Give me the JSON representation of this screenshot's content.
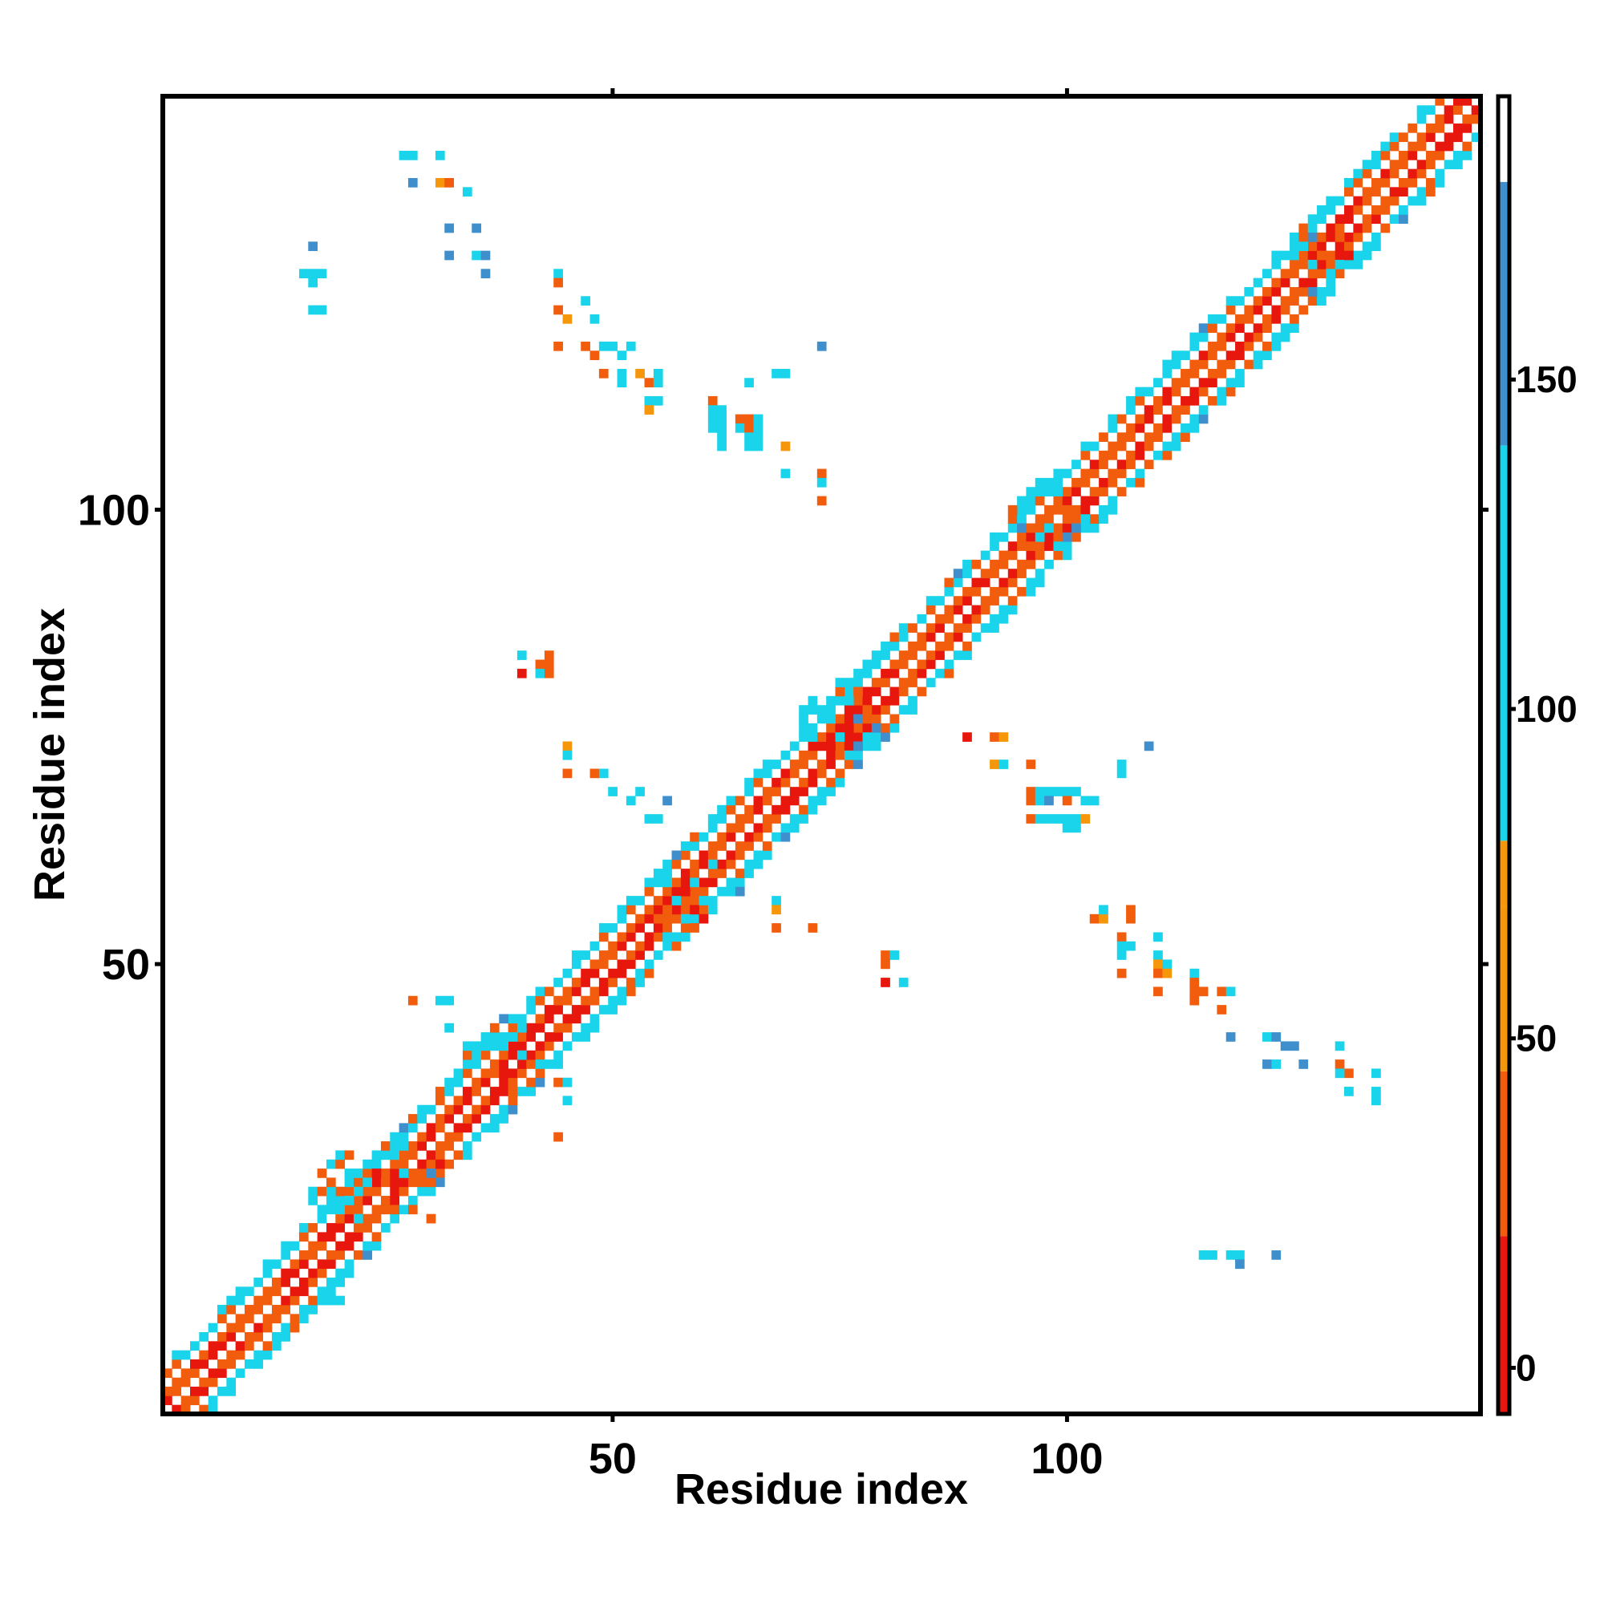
{
  "chart_data": {
    "type": "heatmap",
    "title": "",
    "xlabel": "Residue index",
    "ylabel": "Residue index",
    "x_range": [
      1,
      145
    ],
    "y_range": [
      1,
      145
    ],
    "x_ticks": [
      50,
      100
    ],
    "y_ticks": [
      50,
      100
    ],
    "colorbar": {
      "ticks": [
        0,
        50,
        100,
        150
      ],
      "range": [
        -7,
        193
      ],
      "bands": [
        {
          "from": -7,
          "to": 20,
          "color": "#e8170d"
        },
        {
          "from": 20,
          "to": 45,
          "color": "#f15d0d"
        },
        {
          "from": 45,
          "to": 70,
          "color": "#f6960a"
        },
        {
          "from": 70,
          "to": 80,
          "color": "#f6960a"
        },
        {
          "from": 80,
          "to": 140,
          "color": "#19d4ea"
        },
        {
          "from": 140,
          "to": 180,
          "color": "#3f8fcd"
        },
        {
          "from": 180,
          "to": 193,
          "color": "#ffffff"
        }
      ]
    },
    "grid": false,
    "legend": "colorbar right",
    "band_half_width": 5,
    "diagonal_clusters": [
      {
        "x": 21,
        "y": 25
      },
      {
        "x": 27,
        "y": 27
      },
      {
        "x": 38,
        "y": 40
      },
      {
        "x": 57,
        "y": 57
      },
      {
        "x": 75,
        "y": 77
      },
      {
        "x": 98,
        "y": 99
      },
      {
        "x": 128,
        "y": 128
      }
    ],
    "off_diagonal_contacts": [
      {
        "x": 27,
        "y": 139,
        "v": 95
      },
      {
        "x": 28,
        "y": 139,
        "v": 95
      },
      {
        "x": 31,
        "y": 139,
        "v": 95
      },
      {
        "x": 28,
        "y": 136,
        "v": 150
      },
      {
        "x": 31,
        "y": 136,
        "v": 60
      },
      {
        "x": 32,
        "y": 136,
        "v": 40
      },
      {
        "x": 34,
        "y": 135,
        "v": 95
      },
      {
        "x": 32,
        "y": 131,
        "v": 150
      },
      {
        "x": 35,
        "y": 131,
        "v": 150
      },
      {
        "x": 32,
        "y": 128,
        "v": 150
      },
      {
        "x": 35,
        "y": 128,
        "v": 110
      },
      {
        "x": 36,
        "y": 128,
        "v": 150
      },
      {
        "x": 36,
        "y": 126,
        "v": 150
      },
      {
        "x": 17,
        "y": 129,
        "v": 150
      },
      {
        "x": 16,
        "y": 126,
        "v": 95
      },
      {
        "x": 17,
        "y": 126,
        "v": 95
      },
      {
        "x": 18,
        "y": 126,
        "v": 95
      },
      {
        "x": 17,
        "y": 125,
        "v": 95
      },
      {
        "x": 17,
        "y": 122,
        "v": 95
      },
      {
        "x": 18,
        "y": 122,
        "v": 95
      },
      {
        "x": 44,
        "y": 126,
        "v": 95
      },
      {
        "x": 44,
        "y": 125,
        "v": 40
      },
      {
        "x": 47,
        "y": 123,
        "v": 95
      },
      {
        "x": 44,
        "y": 122,
        "v": 40
      },
      {
        "x": 45,
        "y": 121,
        "v": 60
      },
      {
        "x": 48,
        "y": 121,
        "v": 95
      },
      {
        "x": 44,
        "y": 118,
        "v": 40
      },
      {
        "x": 47,
        "y": 118,
        "v": 40
      },
      {
        "x": 49,
        "y": 118,
        "v": 110
      },
      {
        "x": 50,
        "y": 118,
        "v": 95
      },
      {
        "x": 52,
        "y": 118,
        "v": 95
      },
      {
        "x": 48,
        "y": 117,
        "v": 40
      },
      {
        "x": 51,
        "y": 117,
        "v": 95
      },
      {
        "x": 49,
        "y": 115,
        "v": 40
      },
      {
        "x": 51,
        "y": 115,
        "v": 110
      },
      {
        "x": 53,
        "y": 115,
        "v": 60
      },
      {
        "x": 55,
        "y": 115,
        "v": 95
      },
      {
        "x": 51,
        "y": 114,
        "v": 95
      },
      {
        "x": 54,
        "y": 114,
        "v": 40
      },
      {
        "x": 55,
        "y": 114,
        "v": 95
      },
      {
        "x": 54,
        "y": 112,
        "v": 95
      },
      {
        "x": 55,
        "y": 112,
        "v": 95
      },
      {
        "x": 54,
        "y": 111,
        "v": 60
      },
      {
        "x": 61,
        "y": 112,
        "v": 40
      },
      {
        "x": 61,
        "y": 111,
        "v": 95
      },
      {
        "x": 62,
        "y": 111,
        "v": 95
      },
      {
        "x": 61,
        "y": 110,
        "v": 95
      },
      {
        "x": 62,
        "y": 110,
        "v": 95
      },
      {
        "x": 64,
        "y": 110,
        "v": 40
      },
      {
        "x": 65,
        "y": 110,
        "v": 40
      },
      {
        "x": 66,
        "y": 110,
        "v": 95
      },
      {
        "x": 61,
        "y": 109,
        "v": 95
      },
      {
        "x": 62,
        "y": 109,
        "v": 95
      },
      {
        "x": 64,
        "y": 109,
        "v": 95
      },
      {
        "x": 65,
        "y": 109,
        "v": 40
      },
      {
        "x": 66,
        "y": 109,
        "v": 95
      },
      {
        "x": 62,
        "y": 108,
        "v": 95
      },
      {
        "x": 65,
        "y": 108,
        "v": 95
      },
      {
        "x": 66,
        "y": 108,
        "v": 95
      },
      {
        "x": 62,
        "y": 107,
        "v": 95
      },
      {
        "x": 65,
        "y": 107,
        "v": 95
      },
      {
        "x": 66,
        "y": 107,
        "v": 95
      },
      {
        "x": 65,
        "y": 114,
        "v": 110
      },
      {
        "x": 68,
        "y": 115,
        "v": 95
      },
      {
        "x": 69,
        "y": 115,
        "v": 95
      },
      {
        "x": 73,
        "y": 118,
        "v": 150
      },
      {
        "x": 69,
        "y": 107,
        "v": 60
      },
      {
        "x": 69,
        "y": 104,
        "v": 95
      },
      {
        "x": 73,
        "y": 104,
        "v": 40
      },
      {
        "x": 73,
        "y": 103,
        "v": 95
      },
      {
        "x": 73,
        "y": 101,
        "v": 40
      },
      {
        "x": 40,
        "y": 84,
        "v": 95
      },
      {
        "x": 43,
        "y": 84,
        "v": 40
      },
      {
        "x": 42,
        "y": 83,
        "v": 40
      },
      {
        "x": 43,
        "y": 83,
        "v": 40
      },
      {
        "x": 40,
        "y": 82,
        "v": 5
      },
      {
        "x": 42,
        "y": 82,
        "v": 95
      },
      {
        "x": 43,
        "y": 82,
        "v": 40
      },
      {
        "x": 45,
        "y": 74,
        "v": 60
      },
      {
        "x": 45,
        "y": 73,
        "v": 95
      },
      {
        "x": 45,
        "y": 71,
        "v": 40
      },
      {
        "x": 48,
        "y": 71,
        "v": 40
      },
      {
        "x": 49,
        "y": 71,
        "v": 95
      },
      {
        "x": 50,
        "y": 69,
        "v": 95
      },
      {
        "x": 52,
        "y": 68,
        "v": 95
      },
      {
        "x": 53,
        "y": 69,
        "v": 95
      },
      {
        "x": 56,
        "y": 68,
        "v": 150
      },
      {
        "x": 54,
        "y": 66,
        "v": 95
      },
      {
        "x": 55,
        "y": 66,
        "v": 95
      },
      {
        "x": 61,
        "y": 62,
        "v": 95
      },
      {
        "x": 61,
        "y": 61,
        "v": 95
      },
      {
        "x": 63,
        "y": 61,
        "v": 95
      },
      {
        "x": 64,
        "y": 60,
        "v": 95
      },
      {
        "x": 65,
        "y": 60,
        "v": 95
      },
      {
        "x": 64,
        "y": 58,
        "v": 150
      },
      {
        "x": 68,
        "y": 57,
        "v": 95
      },
      {
        "x": 68,
        "y": 56,
        "v": 60
      },
      {
        "x": 68,
        "y": 54,
        "v": 40
      },
      {
        "x": 72,
        "y": 54,
        "v": 40
      },
      {
        "x": 80,
        "y": 51,
        "v": 40
      },
      {
        "x": 81,
        "y": 51,
        "v": 95
      },
      {
        "x": 80,
        "y": 50,
        "v": 40
      },
      {
        "x": 80,
        "y": 48,
        "v": 5
      },
      {
        "x": 82,
        "y": 48,
        "v": 95
      },
      {
        "x": 89,
        "y": 75,
        "v": 5
      },
      {
        "x": 92,
        "y": 75,
        "v": 40
      },
      {
        "x": 93,
        "y": 75,
        "v": 60
      },
      {
        "x": 92,
        "y": 72,
        "v": 60
      },
      {
        "x": 93,
        "y": 72,
        "v": 95
      },
      {
        "x": 96,
        "y": 72,
        "v": 40
      },
      {
        "x": 96,
        "y": 69,
        "v": 40
      },
      {
        "x": 97,
        "y": 69,
        "v": 95
      },
      {
        "x": 98,
        "y": 69,
        "v": 95
      },
      {
        "x": 99,
        "y": 69,
        "v": 95
      },
      {
        "x": 100,
        "y": 69,
        "v": 95
      },
      {
        "x": 101,
        "y": 69,
        "v": 95
      },
      {
        "x": 96,
        "y": 68,
        "v": 40
      },
      {
        "x": 97,
        "y": 68,
        "v": 95
      },
      {
        "x": 98,
        "y": 68,
        "v": 150
      },
      {
        "x": 100,
        "y": 68,
        "v": 40
      },
      {
        "x": 102,
        "y": 68,
        "v": 95
      },
      {
        "x": 103,
        "y": 68,
        "v": 95
      },
      {
        "x": 96,
        "y": 66,
        "v": 40
      },
      {
        "x": 97,
        "y": 66,
        "v": 95
      },
      {
        "x": 98,
        "y": 66,
        "v": 95
      },
      {
        "x": 99,
        "y": 66,
        "v": 95
      },
      {
        "x": 100,
        "y": 66,
        "v": 95
      },
      {
        "x": 101,
        "y": 66,
        "v": 95
      },
      {
        "x": 102,
        "y": 66,
        "v": 60
      },
      {
        "x": 100,
        "y": 65,
        "v": 95
      },
      {
        "x": 101,
        "y": 65,
        "v": 95
      },
      {
        "x": 106,
        "y": 72,
        "v": 95
      },
      {
        "x": 106,
        "y": 71,
        "v": 95
      },
      {
        "x": 109,
        "y": 74,
        "v": 150
      },
      {
        "x": 103,
        "y": 55,
        "v": 40
      },
      {
        "x": 104,
        "y": 55,
        "v": 60
      },
      {
        "x": 104,
        "y": 56,
        "v": 95
      },
      {
        "x": 107,
        "y": 56,
        "v": 40
      },
      {
        "x": 107,
        "y": 55,
        "v": 40
      },
      {
        "x": 106,
        "y": 53,
        "v": 40
      },
      {
        "x": 107,
        "y": 52,
        "v": 95
      },
      {
        "x": 106,
        "y": 52,
        "v": 95
      },
      {
        "x": 110,
        "y": 53,
        "v": 95
      },
      {
        "x": 106,
        "y": 51,
        "v": 95
      },
      {
        "x": 110,
        "y": 51,
        "v": 95
      },
      {
        "x": 110,
        "y": 50,
        "v": 60
      },
      {
        "x": 111,
        "y": 50,
        "v": 95
      },
      {
        "x": 106,
        "y": 49,
        "v": 40
      },
      {
        "x": 110,
        "y": 49,
        "v": 40
      },
      {
        "x": 111,
        "y": 49,
        "v": 60
      },
      {
        "x": 114,
        "y": 49,
        "v": 95
      },
      {
        "x": 114,
        "y": 48,
        "v": 40
      },
      {
        "x": 110,
        "y": 47,
        "v": 40
      },
      {
        "x": 114,
        "y": 47,
        "v": 40
      },
      {
        "x": 115,
        "y": 47,
        "v": 40
      },
      {
        "x": 117,
        "y": 47,
        "v": 40
      },
      {
        "x": 118,
        "y": 47,
        "v": 95
      },
      {
        "x": 114,
        "y": 46,
        "v": 40
      },
      {
        "x": 117,
        "y": 45,
        "v": 40
      },
      {
        "x": 118,
        "y": 42,
        "v": 150
      },
      {
        "x": 122,
        "y": 42,
        "v": 110
      },
      {
        "x": 123,
        "y": 42,
        "v": 150
      },
      {
        "x": 124,
        "y": 41,
        "v": 150
      },
      {
        "x": 125,
        "y": 41,
        "v": 150
      },
      {
        "x": 130,
        "y": 41,
        "v": 95
      },
      {
        "x": 122,
        "y": 39,
        "v": 150
      },
      {
        "x": 123,
        "y": 39,
        "v": 110
      },
      {
        "x": 126,
        "y": 39,
        "v": 150
      },
      {
        "x": 130,
        "y": 39,
        "v": 40
      },
      {
        "x": 131,
        "y": 38,
        "v": 40
      },
      {
        "x": 130,
        "y": 38,
        "v": 95
      },
      {
        "x": 134,
        "y": 38,
        "v": 95
      },
      {
        "x": 131,
        "y": 36,
        "v": 95
      },
      {
        "x": 134,
        "y": 36,
        "v": 95
      },
      {
        "x": 134,
        "y": 35,
        "v": 110
      },
      {
        "x": 115,
        "y": 18,
        "v": 95
      },
      {
        "x": 116,
        "y": 18,
        "v": 95
      },
      {
        "x": 118,
        "y": 18,
        "v": 95
      },
      {
        "x": 119,
        "y": 18,
        "v": 110
      },
      {
        "x": 119,
        "y": 17,
        "v": 150
      },
      {
        "x": 123,
        "y": 18,
        "v": 150
      },
      {
        "x": 28,
        "y": 46,
        "v": 40
      },
      {
        "x": 31,
        "y": 46,
        "v": 95
      },
      {
        "x": 32,
        "y": 46,
        "v": 95
      },
      {
        "x": 32,
        "y": 43,
        "v": 95
      },
      {
        "x": 45,
        "y": 35,
        "v": 95
      },
      {
        "x": 44,
        "y": 37,
        "v": 40
      },
      {
        "x": 45,
        "y": 37,
        "v": 95
      },
      {
        "x": 44,
        "y": 31,
        "v": 40
      },
      {
        "x": 30,
        "y": 22,
        "v": 40
      },
      {
        "x": 19,
        "y": 13,
        "v": 95
      },
      {
        "x": 20,
        "y": 13,
        "v": 95
      }
    ]
  }
}
